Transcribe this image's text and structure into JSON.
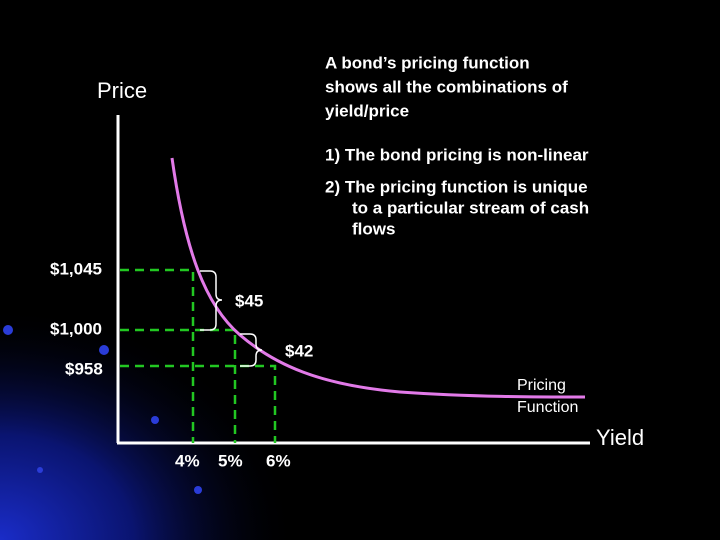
{
  "title_lines": [
    "A bond’s pricing function",
    "shows all the combinations of",
    "yield/price"
  ],
  "points": [
    "1) The bond pricing is non-linear",
    "2) The pricing function is unique",
    "to a particular stream of cash",
    "flows"
  ],
  "y_axis_label": "Price",
  "x_axis_label": "Yield",
  "price_labels": [
    "$1,045",
    "$1,000",
    "$958"
  ],
  "yield_labels": [
    "4%",
    "5%",
    "6%"
  ],
  "differences": [
    "$45",
    "$42"
  ],
  "curve_label": [
    "Pricing",
    "Function"
  ]
}
